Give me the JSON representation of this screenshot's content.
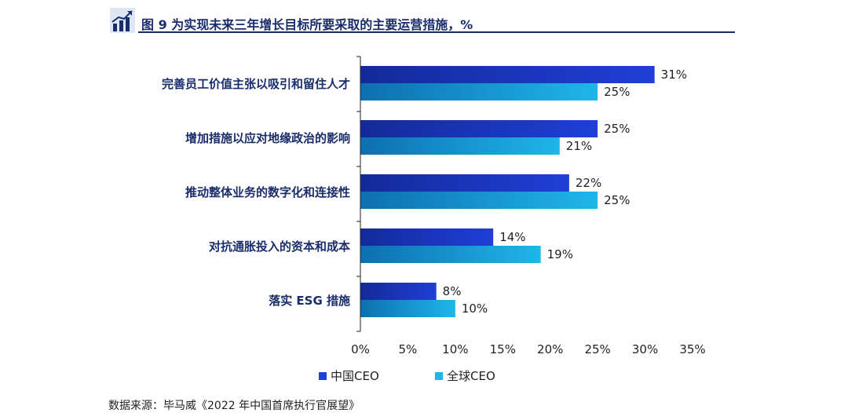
{
  "header": {
    "title": "图 9  为实现未来三年增长目标所要采取的主要运营措施，%"
  },
  "source": "数据来源：毕马威《2022 年中国首席执行官展望》",
  "colors": {
    "china": "#1f3fd6",
    "china_dark": "#142a9a",
    "global": "#1fb6ea",
    "global_dark": "#0d6fb0",
    "title": "#1a2d6b"
  },
  "chart_data": {
    "type": "bar",
    "orientation": "horizontal",
    "categories": [
      "完善员工价值主张以吸引和留住人才",
      "增加措施以应对地缘政治的影响",
      "推动整体业务的数字化和连接性",
      "对抗通胀投入的资本和成本",
      "落实 ESG 措施"
    ],
    "series": [
      {
        "name": "中国CEO",
        "values": [
          31,
          25,
          22,
          14,
          8
        ],
        "value_labels": [
          "31%",
          "25%",
          "22%",
          "14%",
          "8%"
        ]
      },
      {
        "name": "全球CEO",
        "values": [
          25,
          21,
          25,
          19,
          10
        ],
        "value_labels": [
          "25%",
          "21%",
          "25%",
          "19%",
          "10%"
        ]
      }
    ],
    "xlim": [
      0,
      35
    ],
    "xticks": [
      0,
      5,
      10,
      15,
      20,
      25,
      30,
      35
    ],
    "xtick_labels": [
      "0%",
      "5%",
      "10%",
      "15%",
      "20%",
      "25%",
      "30%",
      "35%"
    ],
    "legend_position": "bottom",
    "grid": false
  }
}
